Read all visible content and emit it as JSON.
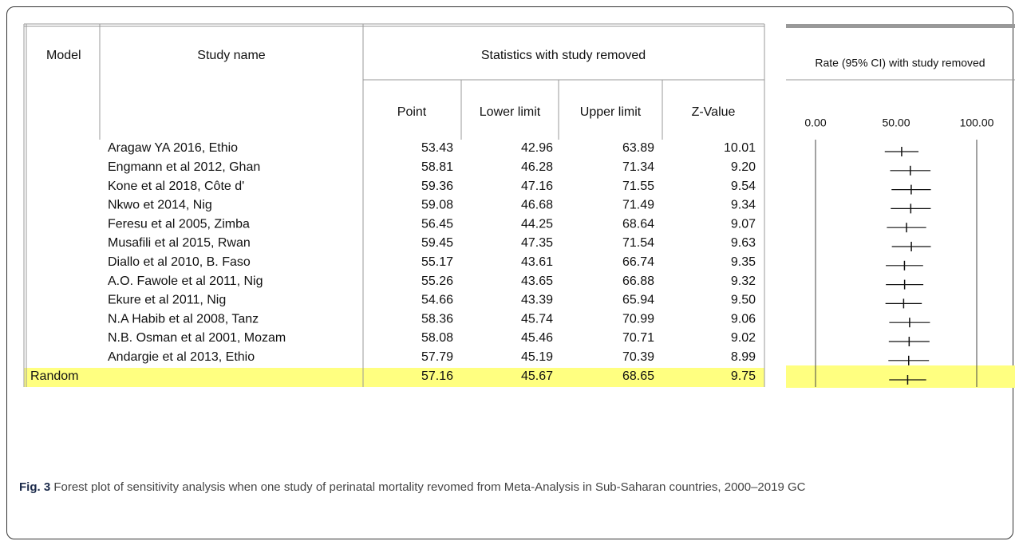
{
  "table": {
    "headers": {
      "model": "Model",
      "study": "Study name",
      "group": "Statistics with study removed",
      "point": "Point",
      "lower": "Lower limit",
      "upper": "Upper limit",
      "z": "Z-Value",
      "plot": "Rate (95% CI) with study removed"
    },
    "rows": [
      {
        "study": "Aragaw YA 2016, Ethio",
        "point": 53.43,
        "lower": 42.96,
        "upper": 63.89,
        "z": "10.01"
      },
      {
        "study": "Engmann et al 2012,  Ghan",
        "point": 58.81,
        "lower": 46.28,
        "upper": 71.34,
        "z": "9.20"
      },
      {
        "study": "Kone et al 2018, Côte d'",
        "point": 59.36,
        "lower": 47.16,
        "upper": 71.55,
        "z": "9.54"
      },
      {
        "study": "Nkwo et 2014, Nig",
        "point": 59.08,
        "lower": 46.68,
        "upper": 71.49,
        "z": "9.34"
      },
      {
        "study": "Feresu et al 2005, Zimba",
        "point": 56.45,
        "lower": 44.25,
        "upper": 68.64,
        "z": "9.07"
      },
      {
        "study": "Musafili et al 2015, Rwan",
        "point": 59.45,
        "lower": 47.35,
        "upper": 71.54,
        "z": "9.63"
      },
      {
        "study": "Diallo et al 2010, B. Faso",
        "point": 55.17,
        "lower": 43.61,
        "upper": 66.74,
        "z": "9.35"
      },
      {
        "study": "A.O. Fawole et al 2011, Nig",
        "point": 55.26,
        "lower": 43.65,
        "upper": 66.88,
        "z": "9.32"
      },
      {
        "study": "Ekure et al 2011, Nig",
        "point": 54.66,
        "lower": 43.39,
        "upper": 65.94,
        "z": "9.50"
      },
      {
        "study": "N.A Habib et al 2008, Tanz",
        "point": 58.36,
        "lower": 45.74,
        "upper": 70.99,
        "z": "9.06"
      },
      {
        "study": "N.B. Osman et al 2001, Mozam",
        "point": 58.08,
        "lower": 45.46,
        "upper": 70.71,
        "z": "9.02"
      },
      {
        "study": "Andargie et al 2013, Ethio",
        "point": 57.79,
        "lower": 45.19,
        "upper": 70.39,
        "z": "8.99"
      }
    ],
    "summary": {
      "model": "Random",
      "point": 57.16,
      "lower": 45.67,
      "upper": 68.65,
      "z": "9.75"
    }
  },
  "forest": {
    "xlim": [
      0,
      100
    ],
    "xticks": [
      {
        "value": 0,
        "label": "0.00"
      },
      {
        "value": 50,
        "label": "50.00"
      },
      {
        "value": 100,
        "label": "100.00"
      }
    ]
  },
  "caption": {
    "label": "Fig. 3",
    "text": "Forest plot of sensitivity analysis when one study of perinatal mortality revomed from Meta-Analysis in Sub-Saharan countries, 2000–2019 GC"
  }
}
